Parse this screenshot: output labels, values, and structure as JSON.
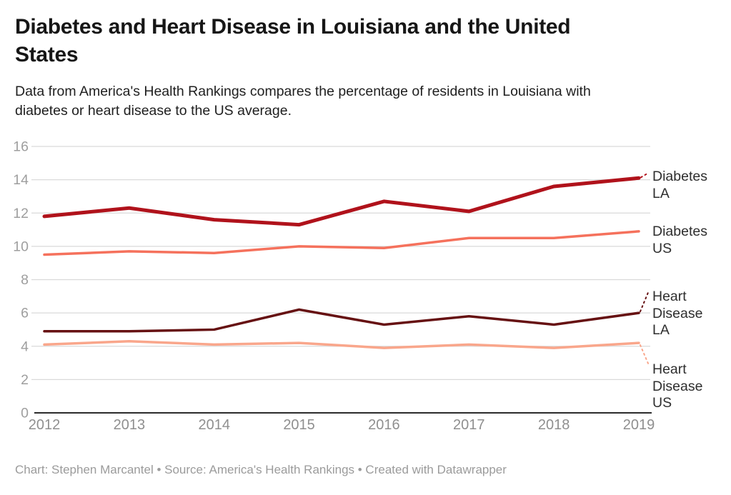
{
  "header": {
    "title": "Diabetes and Heart Disease in Louisiana and the United\nStates",
    "subtitle": "Data from America's Health Rankings compares the percentage of residents in Louisiana with\ndiabetes or heart disease to the US average."
  },
  "footer": {
    "text": "Chart: Stephen Marcantel • Source: America's Health Rankings • Created with Datawrapper"
  },
  "colors": {
    "diabetes_la": "#b0121b",
    "diabetes_us": "#f5715c",
    "heart_disease_la": "#661112",
    "heart_disease_us": "#f9a68b",
    "gridline": "#dadada",
    "axis_line": "#2b2b2b",
    "y_tick_label": "#9e9e9e",
    "x_tick_label": "#8f8f8f",
    "series_label_text": "#2e2e2e",
    "footer_text": "#9b9b9b"
  },
  "chart_data": {
    "type": "line",
    "title": "Diabetes and Heart Disease in Louisiana and the United States",
    "subtitle": "Data from America's Health Rankings compares the percentage of residents in Louisiana with diabetes or heart disease to the US average.",
    "x": [
      2012,
      2013,
      2014,
      2015,
      2016,
      2017,
      2018,
      2019
    ],
    "xlabel": "",
    "ylabel": "",
    "ylim": [
      0,
      16
    ],
    "yticks": [
      0,
      2,
      4,
      6,
      8,
      10,
      12,
      14,
      16
    ],
    "grid": true,
    "legend_position": "labels-at-line-ends-right",
    "series": [
      {
        "name": "Diabetes LA",
        "label": "Diabetes\nLA",
        "color": "#b0121b",
        "stroke_width": 5,
        "values": [
          11.8,
          12.3,
          11.6,
          11.3,
          12.7,
          12.1,
          13.6,
          14.1
        ]
      },
      {
        "name": "Diabetes US",
        "label": "Diabetes\nUS",
        "color": "#f5715c",
        "stroke_width": 3.5,
        "values": [
          9.5,
          9.7,
          9.6,
          10.0,
          9.9,
          10.5,
          10.5,
          10.9
        ]
      },
      {
        "name": "Heart Disease LA",
        "label": "Heart\nDisease\nLA",
        "color": "#661112",
        "stroke_width": 3.5,
        "values": [
          4.9,
          4.9,
          5.0,
          6.2,
          5.3,
          5.8,
          5.3,
          6.0
        ]
      },
      {
        "name": "Heart Disease US",
        "label": "Heart\nDisease\nUS",
        "color": "#f9a68b",
        "stroke_width": 3.5,
        "values": [
          4.1,
          4.3,
          4.1,
          4.2,
          3.9,
          4.1,
          3.9,
          4.2
        ]
      }
    ]
  }
}
